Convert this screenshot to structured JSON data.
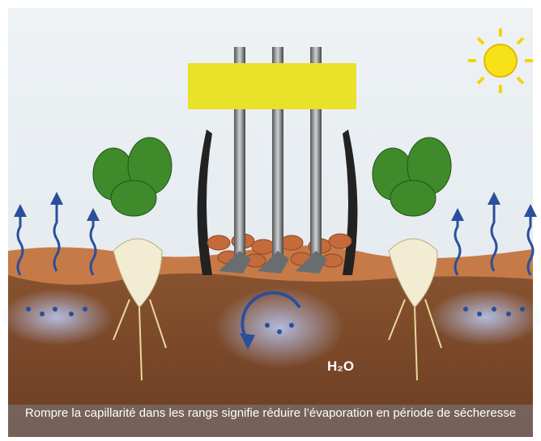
{
  "label": "H₂O",
  "caption": "Rompre la capillarité dans les rangs signifie réduire l’évaporation en période de sécheresse"
}
